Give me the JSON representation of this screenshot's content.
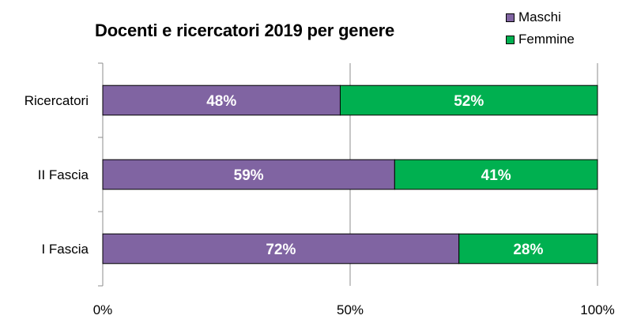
{
  "chart_data": {
    "type": "bar",
    "orientation": "horizontal",
    "stacked": "percent",
    "title": "Docenti e ricercatori 2019 per genere",
    "categories": [
      "Ricercatori",
      "II Fascia",
      "I Fascia"
    ],
    "series": [
      {
        "name": "Maschi",
        "color": "#8064a2",
        "values": [
          48,
          59,
          72
        ],
        "labels": [
          "48%",
          "59%",
          "72%"
        ]
      },
      {
        "name": "Femmine",
        "color": "#00b050",
        "values": [
          52,
          41,
          28
        ],
        "labels": [
          "52%",
          "41%",
          "28%"
        ]
      }
    ],
    "xlim": [
      0,
      100
    ],
    "x_ticks": [
      0,
      50,
      100
    ],
    "x_tick_labels": [
      "0%",
      "50%",
      "100%"
    ],
    "legend_position": "top-right",
    "grid": "vertical"
  }
}
